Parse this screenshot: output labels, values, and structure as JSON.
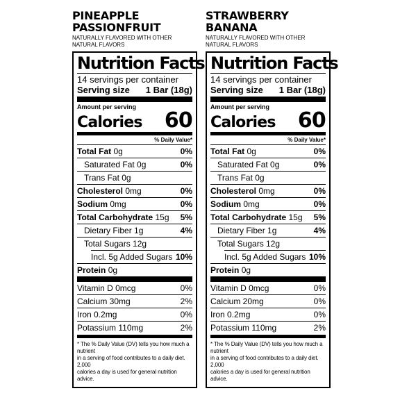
{
  "panels": [
    {
      "flavor_line1": "PINEAPPLE",
      "flavor_line2": "PASSIONFRUIT",
      "note_line1": "NATURALLY FLAVORED WITH OTHER",
      "note_line2": "NATURAL FLAVORS",
      "title": "Nutrition Facts",
      "servings": "14 servings per container",
      "serving_size_label": "Serving size",
      "serving_size_value": "1 Bar (18g)",
      "amount_per_serving": "Amount per serving",
      "calories_label": "Calories",
      "calories_value": "60",
      "dv_header": "% Daily Value*",
      "total_fat_label": "Total Fat",
      "total_fat_amount": "0g",
      "total_fat_dv": "0%",
      "sat_fat": "Saturated Fat 0g",
      "sat_fat_dv": "0%",
      "trans_fat": "Trans Fat 0g",
      "cholesterol_label": "Cholesterol",
      "cholesterol_amount": "0mg",
      "cholesterol_dv": "0%",
      "sodium_label": "Sodium",
      "sodium_amount": "0mg",
      "sodium_dv": "0%",
      "carb_label": "Total Carbohydrate",
      "carb_amount": "15g",
      "carb_dv": "5%",
      "fiber": "Dietary Fiber 1g",
      "fiber_dv": "4%",
      "sugars": "Total Sugars 12g",
      "added_sugars": "Incl. 5g Added Sugars",
      "added_sugars_dv": "10%",
      "protein_label": "Protein",
      "protein_amount": "0g",
      "vitamin_d": "Vitamin D 0mcg",
      "vitamin_d_dv": "0%",
      "calcium": "Calcium 30mg",
      "calcium_dv": "2%",
      "iron": "Iron 0.2mg",
      "iron_dv": "0%",
      "potassium": "Potassium 110mg",
      "potassium_dv": "2%",
      "footnote_line1": "* The % Daily Value (DV) tells you how much a nutrient",
      "footnote_line2": "in a serving of food contributes to a daily diet. 2,000",
      "footnote_line3": "calories a day is used for general nutrition advice."
    },
    {
      "flavor_line1": "STRAWBERRY",
      "flavor_line2": "BANANA",
      "note_line1": "NATURALLY FLAVORED WITH OTHER",
      "note_line2": "NATURAL FLAVORS",
      "title": "Nutrition Facts",
      "servings": "14 servings per container",
      "serving_size_label": "Serving size",
      "serving_size_value": "1 Bar (18g)",
      "amount_per_serving": "Amount per serving",
      "calories_label": "Calories",
      "calories_value": "60",
      "dv_header": "% Daily Value*",
      "total_fat_label": "Total Fat",
      "total_fat_amount": "0g",
      "total_fat_dv": "0%",
      "sat_fat": "Saturated Fat 0g",
      "sat_fat_dv": "0%",
      "trans_fat": "Trans Fat 0g",
      "cholesterol_label": "Cholesterol",
      "cholesterol_amount": "0mg",
      "cholesterol_dv": "0%",
      "sodium_label": "Sodium",
      "sodium_amount": "0mg",
      "sodium_dv": "0%",
      "carb_label": "Total Carbohydrate",
      "carb_amount": "15g",
      "carb_dv": "5%",
      "fiber": "Dietary Fiber 1g",
      "fiber_dv": "4%",
      "sugars": "Total Sugars 12g",
      "added_sugars": "Incl. 5g Added Sugars",
      "added_sugars_dv": "10%",
      "protein_label": "Protein",
      "protein_amount": "0g",
      "vitamin_d": "Vitamin D 0mcg",
      "vitamin_d_dv": "0%",
      "calcium": "Calcium 20mg",
      "calcium_dv": "0%",
      "iron": "Iron 0.2mg",
      "iron_dv": "0%",
      "potassium": "Potassium 110mg",
      "potassium_dv": "2%",
      "footnote_line1": "* The % Daily Value (DV) tells you how much a nutrient",
      "footnote_line2": "in a serving of food contributes to a daily diet. 2,000",
      "footnote_line3": "calories a day is used for general nutrition advice."
    }
  ]
}
